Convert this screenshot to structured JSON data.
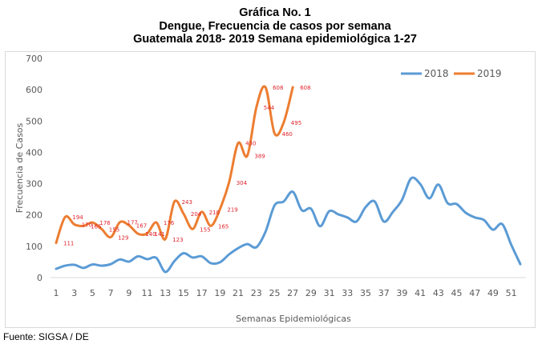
{
  "title_lines": [
    "Gráfica No. 1",
    "Dengue, Frecuencia de casos por semana",
    "Guatemala 2018- 2019 Semana epidemiológica 1-27"
  ],
  "source": "Fuente: SIGSA / DE",
  "chart_data": {
    "type": "line",
    "title": "Gráfica No. 1 — Dengue, Frecuencia de casos por semana, Guatemala 2018- 2019 Semana epidemiológica 1-27",
    "xlabel": "Semanas Epidemiológicas",
    "ylabel": "Frecuencia de Casos",
    "ylim": [
      0,
      700
    ],
    "yticks": [
      0,
      100,
      200,
      300,
      400,
      500,
      600,
      700
    ],
    "xlim": [
      1,
      52
    ],
    "xtick_labels": [
      "1",
      "3",
      "5",
      "7",
      "9",
      "11",
      "13",
      "15",
      "17",
      "19",
      "21",
      "23",
      "25",
      "27",
      "29",
      "31",
      "33",
      "35",
      "37",
      "39",
      "41",
      "43",
      "45",
      "47",
      "49",
      "51"
    ],
    "grid": false,
    "legend_position": "top-right",
    "series": [
      {
        "name": "2018",
        "color": "#5b9bd5",
        "x": [
          1,
          2,
          3,
          4,
          5,
          6,
          7,
          8,
          9,
          10,
          11,
          12,
          13,
          14,
          15,
          16,
          17,
          18,
          19,
          20,
          21,
          22,
          23,
          24,
          25,
          26,
          27,
          28,
          29,
          30,
          31,
          32,
          33,
          34,
          35,
          36,
          37,
          38,
          39,
          40,
          41,
          42,
          43,
          44,
          45,
          46,
          47,
          48,
          49,
          50,
          51,
          52
        ],
        "values": [
          28,
          38,
          41,
          31,
          42,
          38,
          43,
          58,
          51,
          68,
          59,
          63,
          18,
          53,
          78,
          64,
          68,
          46,
          49,
          74,
          94,
          107,
          97,
          146,
          231,
          243,
          274,
          215,
          220,
          164,
          212,
          202,
          192,
          179,
          225,
          243,
          179,
          210,
          248,
          317,
          299,
          253,
          297,
          238,
          235,
          207,
          192,
          184,
          153,
          171,
          105,
          43
        ],
        "data_labels": false
      },
      {
        "name": "2019",
        "color": "#ed7d31",
        "x": [
          1,
          2,
          3,
          4,
          5,
          6,
          7,
          8,
          9,
          10,
          11,
          12,
          13,
          14,
          15,
          16,
          17,
          18,
          19,
          20,
          21,
          22,
          23,
          24,
          25,
          26,
          27
        ],
        "values": [
          111,
          194,
          170,
          165,
          176,
          155,
          129,
          177,
          167,
          140,
          141,
          176,
          123,
          243,
          204,
          155,
          210,
          165,
          219,
          304,
          430,
          389,
          544,
          608,
          460,
          495,
          608
        ],
        "data_labels": true,
        "label_color": "#e0242c"
      }
    ]
  }
}
